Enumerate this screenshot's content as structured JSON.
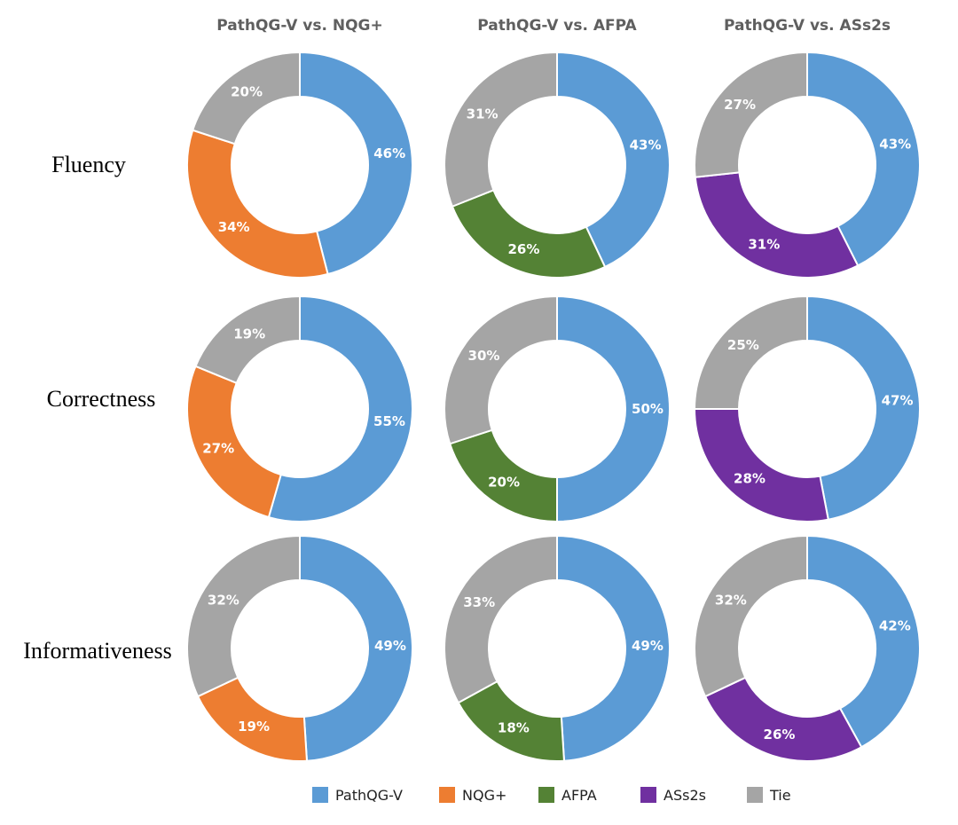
{
  "chart_data": {
    "type": "pie",
    "style": "donut",
    "columns": [
      "PathQG-V  vs. NQG+",
      "PathQG-V  vs. AFPA",
      "PathQG-V  vs. ASs2s"
    ],
    "rows": [
      "Fluency",
      "Correctness",
      "Informativeness"
    ],
    "legend": {
      "position": "bottom",
      "entries": [
        {
          "name": "PathQG-V",
          "color": "#5b9bd5"
        },
        {
          "name": "NQG+",
          "color": "#ed7d31"
        },
        {
          "name": "AFPA",
          "color": "#548235"
        },
        {
          "name": "ASs2s",
          "color": "#7030a0"
        },
        {
          "name": "Tie",
          "color": "#a5a5a5"
        }
      ]
    },
    "charts": [
      {
        "row": "Fluency",
        "column": "PathQG-V  vs. NQG+",
        "slices": [
          {
            "name": "PathQG-V",
            "value": 46,
            "label": "46%"
          },
          {
            "name": "NQG+",
            "value": 34,
            "label": "34%"
          },
          {
            "name": "Tie",
            "value": 20,
            "label": "20%"
          }
        ]
      },
      {
        "row": "Fluency",
        "column": "PathQG-V  vs. AFPA",
        "slices": [
          {
            "name": "PathQG-V",
            "value": 43,
            "label": "43%"
          },
          {
            "name": "AFPA",
            "value": 26,
            "label": "26%"
          },
          {
            "name": "Tie",
            "value": 31,
            "label": "31%"
          }
        ]
      },
      {
        "row": "Fluency",
        "column": "PathQG-V  vs. ASs2s",
        "slices": [
          {
            "name": "PathQG-V",
            "value": 43,
            "label": "43%"
          },
          {
            "name": "ASs2s",
            "value": 31,
            "label": "31%"
          },
          {
            "name": "Tie",
            "value": 27,
            "label": "27%"
          }
        ]
      },
      {
        "row": "Correctness",
        "column": "PathQG-V  vs. NQG+",
        "slices": [
          {
            "name": "PathQG-V",
            "value": 55,
            "label": "55%"
          },
          {
            "name": "NQG+",
            "value": 27,
            "label": "27%"
          },
          {
            "name": "Tie",
            "value": 19,
            "label": "19%"
          }
        ]
      },
      {
        "row": "Correctness",
        "column": "PathQG-V  vs. AFPA",
        "slices": [
          {
            "name": "PathQG-V",
            "value": 50,
            "label": "50%"
          },
          {
            "name": "AFPA",
            "value": 20,
            "label": "20%"
          },
          {
            "name": "Tie",
            "value": 30,
            "label": "30%"
          }
        ]
      },
      {
        "row": "Correctness",
        "column": "PathQG-V  vs. ASs2s",
        "slices": [
          {
            "name": "PathQG-V",
            "value": 47,
            "label": "47%"
          },
          {
            "name": "ASs2s",
            "value": 28,
            "label": "28%"
          },
          {
            "name": "Tie",
            "value": 25,
            "label": "25%"
          }
        ]
      },
      {
        "row": "Informativeness",
        "column": "PathQG-V  vs. NQG+",
        "slices": [
          {
            "name": "PathQG-V",
            "value": 49,
            "label": "49%"
          },
          {
            "name": "NQG+",
            "value": 19,
            "label": "19%"
          },
          {
            "name": "Tie",
            "value": 32,
            "label": "32%"
          }
        ]
      },
      {
        "row": "Informativeness",
        "column": "PathQG-V  vs. AFPA",
        "slices": [
          {
            "name": "PathQG-V",
            "value": 49,
            "label": "49%"
          },
          {
            "name": "AFPA",
            "value": 18,
            "label": "18%"
          },
          {
            "name": "Tie",
            "value": 33,
            "label": "33%"
          }
        ]
      },
      {
        "row": "Informativeness",
        "column": "PathQG-V  vs. ASs2s",
        "slices": [
          {
            "name": "PathQG-V",
            "value": 42,
            "label": "42%"
          },
          {
            "name": "ASs2s",
            "value": 26,
            "label": "26%"
          },
          {
            "name": "Tie",
            "value": 32,
            "label": "32%"
          }
        ]
      }
    ]
  }
}
